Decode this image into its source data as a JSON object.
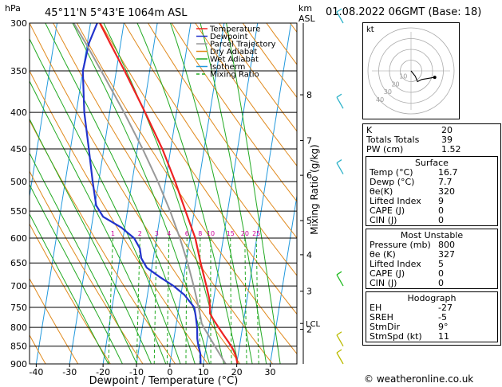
{
  "header": {
    "location": "45°11'N  5°43'E  1064m  ASL",
    "datetime": "01.08.2022  06GMT  (Base: 18)",
    "hpa_label": "hPa",
    "km_label": "km",
    "asl_label": "ASL"
  },
  "chart_data": {
    "type": "line",
    "xlabel": "Dewpoint / Temperature (°C)",
    "ylabel": "",
    "mixing_ratio_label": "Mixing Ratio (g/kg)",
    "xlim": [
      -42,
      38
    ],
    "ylim": [
      900,
      300
    ],
    "x_ticks": [
      -40,
      -30,
      -20,
      -10,
      0,
      10,
      20,
      30
    ],
    "pressure_ticks": [
      300,
      350,
      400,
      450,
      500,
      550,
      600,
      650,
      700,
      750,
      800,
      850,
      900
    ],
    "km_ticks": [
      {
        "km": "8",
        "p": 378
      },
      {
        "km": "7",
        "p": 438
      },
      {
        "km": "6",
        "p": 490
      },
      {
        "km": "5",
        "p": 567
      },
      {
        "km": "4",
        "p": 633
      },
      {
        "km": "3",
        "p": 712
      },
      {
        "km": "2",
        "p": 805
      }
    ],
    "lcl": {
      "label": "LCL",
      "p": 790
    },
    "mixing_ratio_values": [
      {
        "label": "1",
        "w": 1
      },
      {
        "label": "2",
        "w": 2
      },
      {
        "label": "3",
        "w": 3
      },
      {
        "label": "4",
        "w": 4
      },
      {
        "label": "6",
        "w": 6
      },
      {
        "label": "8",
        "w": 8
      },
      {
        "label": "10",
        "w": 10
      },
      {
        "label": "15",
        "w": 15
      },
      {
        "label": "20",
        "w": 20
      },
      {
        "label": "25",
        "w": 25
      }
    ],
    "legend": {
      "placement": "top-right",
      "items": [
        {
          "name": "Temperature",
          "color": "#ee2222",
          "dash": ""
        },
        {
          "name": "Dewpoint",
          "color": "#2233cc",
          "dash": ""
        },
        {
          "name": "Parcel Trajectory",
          "color": "#999999",
          "dash": ""
        },
        {
          "name": "Dry Adiabat",
          "color": "#e08a1e",
          "dash": ""
        },
        {
          "name": "Wet Adiabat",
          "color": "#22aa22",
          "dash": ""
        },
        {
          "name": "Isotherm",
          "color": "#2299dd",
          "dash": ""
        },
        {
          "name": "Mixing Ratio",
          "color": "#22aa22",
          "dash": "4,3"
        }
      ]
    },
    "series": [
      {
        "name": "Temperature",
        "color": "#ee2222",
        "points": [
          [
            900,
            20.2
          ],
          [
            880,
            19.5
          ],
          [
            860,
            18.3
          ],
          [
            840,
            16.6
          ],
          [
            820,
            14.7
          ],
          [
            800,
            12.8
          ],
          [
            780,
            10.9
          ],
          [
            765,
            9.6
          ],
          [
            750,
            9.3
          ],
          [
            730,
            8.7
          ],
          [
            700,
            7.2
          ],
          [
            650,
            4.4
          ],
          [
            600,
            1.6
          ],
          [
            550,
            -2.6
          ],
          [
            500,
            -7.1
          ],
          [
            450,
            -12.5
          ],
          [
            400,
            -19.4
          ],
          [
            350,
            -27.5
          ],
          [
            320,
            -33.2
          ],
          [
            300,
            -37.2
          ]
        ]
      },
      {
        "name": "Dewpoint",
        "color": "#2233cc",
        "points": [
          [
            900,
            9.2
          ],
          [
            870,
            8.6
          ],
          [
            850,
            7.7
          ],
          [
            830,
            7.0
          ],
          [
            800,
            6.4
          ],
          [
            770,
            5.4
          ],
          [
            750,
            4.6
          ],
          [
            720,
            1.0
          ],
          [
            700,
            -2.6
          ],
          [
            680,
            -7.2
          ],
          [
            660,
            -11.5
          ],
          [
            640,
            -13.6
          ],
          [
            620,
            -14.5
          ],
          [
            600,
            -16.7
          ],
          [
            580,
            -21.0
          ],
          [
            560,
            -27.0
          ],
          [
            540,
            -29.6
          ],
          [
            500,
            -31.8
          ],
          [
            450,
            -34.5
          ],
          [
            400,
            -37.6
          ],
          [
            350,
            -40.0
          ],
          [
            320,
            -39.5
          ],
          [
            300,
            -38.0
          ]
        ]
      },
      {
        "name": "Parcel Trajectory",
        "color": "#999999",
        "points": [
          [
            900,
            16.7
          ],
          [
            850,
            12.6
          ],
          [
            800,
            8.4
          ],
          [
            790,
            7.6
          ],
          [
            750,
            5.9
          ],
          [
            700,
            3.4
          ],
          [
            650,
            0.5
          ],
          [
            600,
            -3.0
          ],
          [
            550,
            -7.2
          ],
          [
            500,
            -12.3
          ],
          [
            450,
            -18.4
          ],
          [
            400,
            -25.7
          ],
          [
            350,
            -34.5
          ],
          [
            320,
            -40.5
          ],
          [
            300,
            -45.0
          ]
        ]
      }
    ]
  },
  "hodograph": {
    "label": "kt",
    "ring_labels": [
      "10",
      "20",
      "30",
      "40"
    ],
    "points": [
      [
        0,
        0
      ],
      [
        4,
        -5
      ],
      [
        6,
        -10
      ],
      [
        10,
        -8
      ],
      [
        22,
        -6
      ]
    ]
  },
  "indices": {
    "rows": [
      {
        "label": "K",
        "value": "20"
      },
      {
        "label": "Totals Totals",
        "value": "39"
      },
      {
        "label": "PW (cm)",
        "value": "1.52"
      }
    ]
  },
  "surface": {
    "title": "Surface",
    "rows": [
      {
        "label": "Temp (°C)",
        "value": "16.7"
      },
      {
        "label": "Dewp (°C)",
        "value": "7.7"
      },
      {
        "label": "θe(K)",
        "value": "320"
      },
      {
        "label": "Lifted Index",
        "value": "9"
      },
      {
        "label": "CAPE (J)",
        "value": "0"
      },
      {
        "label": "CIN (J)",
        "value": "0"
      }
    ]
  },
  "most_unstable": {
    "title": "Most Unstable",
    "rows": [
      {
        "label": "Pressure (mb)",
        "value": "800"
      },
      {
        "label": "θe (K)",
        "value": "327"
      },
      {
        "label": "Lifted Index",
        "value": "5"
      },
      {
        "label": "CAPE (J)",
        "value": "0"
      },
      {
        "label": "CIN (J)",
        "value": "0"
      }
    ]
  },
  "hodograph_table": {
    "title": "Hodograph",
    "rows": [
      {
        "label": "EH",
        "value": "-27"
      },
      {
        "label": "SREH",
        "value": "-5"
      },
      {
        "label": "StmDir",
        "value": "9°"
      },
      {
        "label": "StmSpd (kt)",
        "value": "11"
      }
    ]
  },
  "footer": {
    "text": "© weatheronline.co.uk"
  },
  "colors": {
    "isotherm": "#2299dd",
    "dry_adiabat": "#e08a1e",
    "wet_adiabat": "#22aa22",
    "mixing_ratio": "#22aa22",
    "mixing_ratio_label": "#cc0099",
    "wind": "#2fb3c9",
    "wind_low": "#22bb22",
    "wind_surface": "#bbbb00"
  }
}
